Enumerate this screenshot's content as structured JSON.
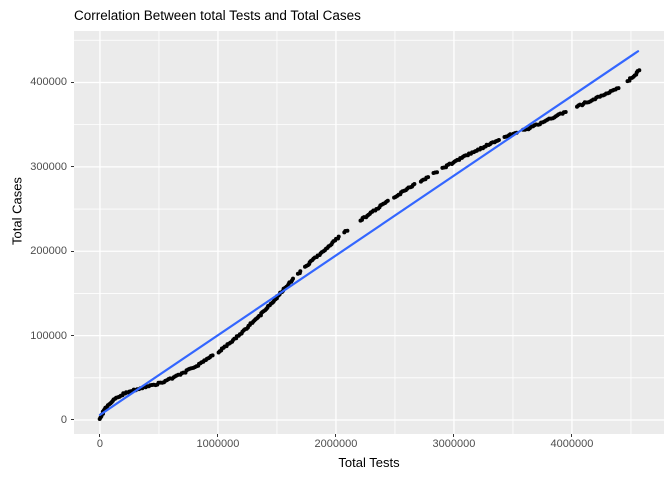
{
  "chart_data": {
    "type": "scatter",
    "title": "Correlation Between total Tests and Total Cases",
    "xlabel": "Total Tests",
    "ylabel": "Total Cases",
    "x_ticks": [
      0,
      1000000,
      2000000,
      3000000,
      4000000
    ],
    "x_minor_ticks": [
      500000,
      1500000,
      2500000,
      3500000,
      4500000
    ],
    "y_ticks": [
      0,
      100000,
      200000,
      300000,
      400000
    ],
    "y_minor_ticks": [
      50000,
      150000,
      250000,
      350000,
      450000
    ],
    "xlim": [
      -220000,
      4780000
    ],
    "ylim": [
      -16600,
      461000
    ],
    "grid": "on",
    "legend": "none",
    "points": [
      [
        0,
        1000
      ],
      [
        20000,
        8000
      ],
      [
        50000,
        14000
      ],
      [
        90000,
        20000
      ],
      [
        140000,
        26000
      ],
      [
        200000,
        31000
      ],
      [
        260000,
        34500
      ],
      [
        330000,
        37000
      ],
      [
        400000,
        39500
      ],
      [
        470000,
        42000
      ],
      [
        540000,
        45500
      ],
      [
        610000,
        49500
      ],
      [
        680000,
        54000
      ],
      [
        750000,
        59000
      ],
      [
        830000,
        65000
      ],
      [
        910000,
        72000
      ],
      [
        990000,
        79500
      ],
      [
        1070000,
        88000
      ],
      [
        1150000,
        97500
      ],
      [
        1230000,
        107500
      ],
      [
        1310000,
        118000
      ],
      [
        1390000,
        128500
      ],
      [
        1460000,
        139000
      ],
      [
        1540000,
        152000
      ],
      [
        1620000,
        164000
      ],
      [
        1700000,
        176000
      ],
      [
        1790000,
        188000
      ],
      [
        1880000,
        199000
      ],
      [
        1970000,
        210000
      ],
      [
        2060000,
        221000
      ],
      [
        2150000,
        231000
      ],
      [
        2240000,
        240000
      ],
      [
        2330000,
        249000
      ],
      [
        2430000,
        258000
      ],
      [
        2530000,
        267000
      ],
      [
        2630000,
        276000
      ],
      [
        2730000,
        284000
      ],
      [
        2830000,
        292000
      ],
      [
        2930000,
        300000
      ],
      [
        3030000,
        308000
      ],
      [
        3130000,
        315000
      ],
      [
        3230000,
        322000
      ],
      [
        3330000,
        329000
      ],
      [
        3430000,
        335000
      ],
      [
        3530000,
        341000
      ],
      [
        3630000,
        345000
      ],
      [
        3740000,
        352000
      ],
      [
        3850000,
        359000
      ],
      [
        3960000,
        366000
      ],
      [
        4070000,
        373000
      ],
      [
        4180000,
        380000
      ],
      [
        4290000,
        387000
      ],
      [
        4380000,
        393000
      ],
      [
        4460000,
        400000
      ],
      [
        4520000,
        407000
      ],
      [
        4560000,
        413000
      ],
      [
        4580000,
        416000
      ]
    ],
    "smooth_line": {
      "name": "linear-fit-line",
      "x": [
        0,
        4560000
      ],
      "y": [
        6000,
        437000
      ]
    },
    "colors": {
      "panel_bg": "#EBEBEB",
      "grid_major": "#FFFFFF",
      "grid_minor": "#FFFFFF",
      "point": "#000000",
      "smooth_line": "#3366FF",
      "axis_text": "#4D4D4D",
      "title_text": "#000000",
      "tick_mark": "#333333",
      "outer_bg": "#FFFFFF"
    }
  }
}
